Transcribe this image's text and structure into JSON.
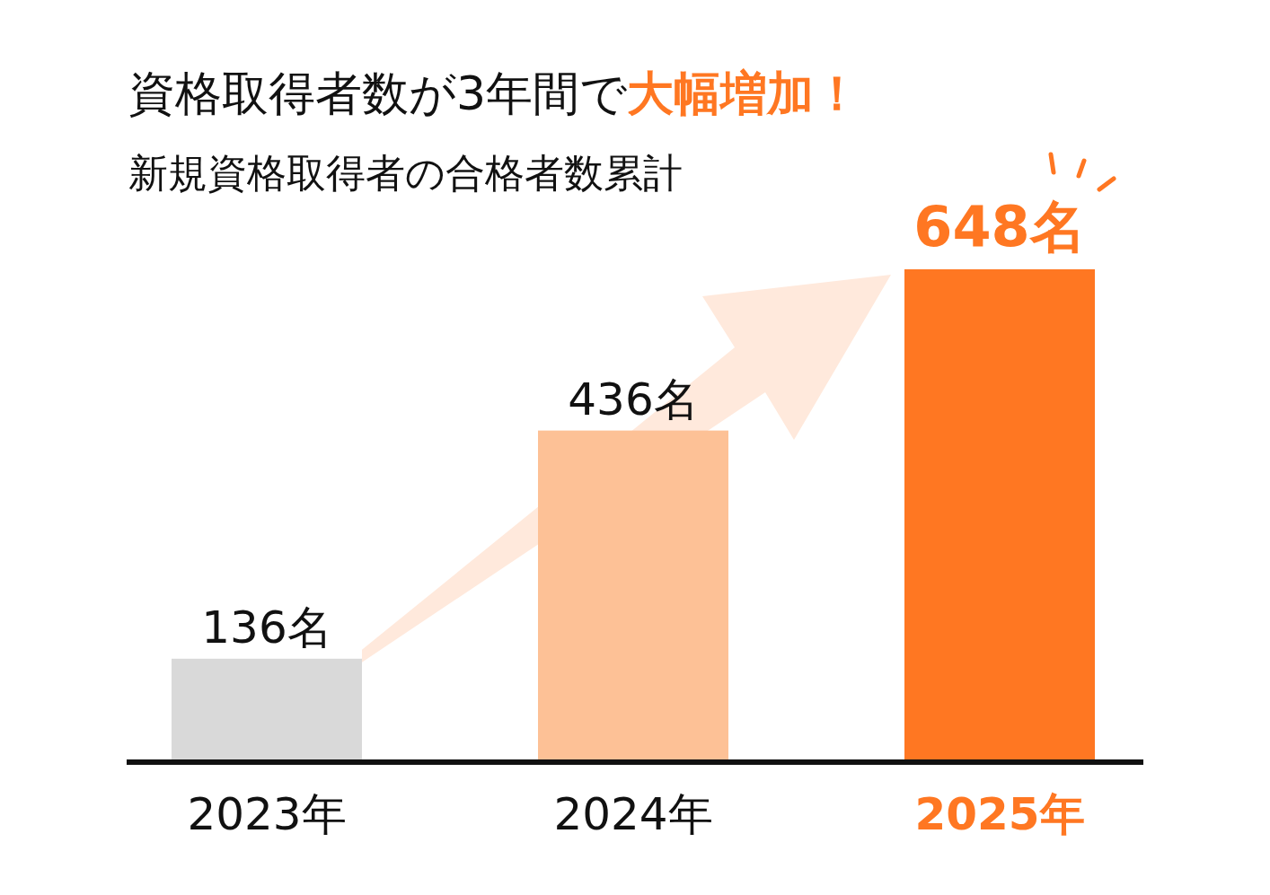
{
  "chart_data": {
    "type": "bar",
    "title": "資格取得者数が3年間で**大幅増加！**",
    "subtitle": "新規資格取得者の合格者数累計",
    "categories": [
      "2023年",
      "2024年",
      "**2025年**"
    ],
    "values": [
      136,
      436,
      648
    ],
    "colors": [
      "#d9d9d9",
      "#fdc196",
      "#ff7722"
    ],
    "value_labels": [
      "136名",
      "436名",
      "648名"
    ]
  }
}
